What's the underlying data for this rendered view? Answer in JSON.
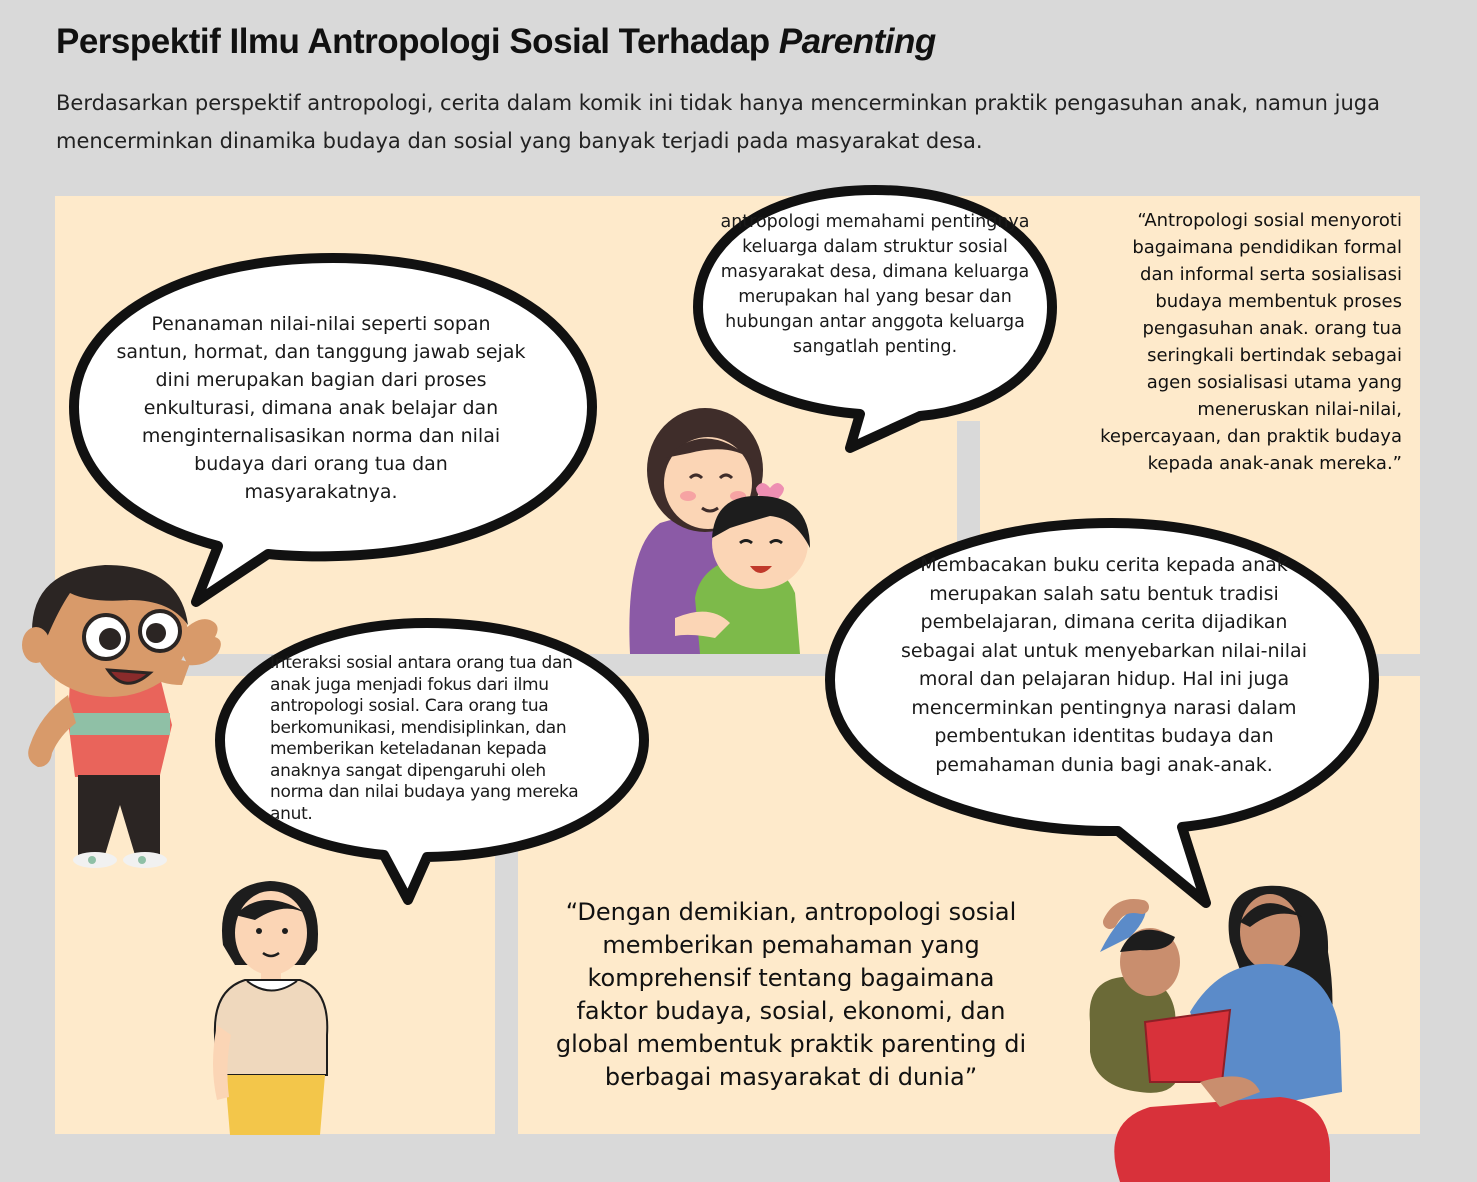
{
  "header": {
    "title_main": "Perspektif Ilmu Antropologi Sosial Terhadap ",
    "title_italic": "Parenting",
    "subtitle": "Berdasarkan perspektif antropologi, cerita dalam komik ini tidak hanya mencerminkan praktik pengasuhan anak, namun juga mencerminkan dinamika budaya dan sosial yang banyak terjadi pada masyarakat desa."
  },
  "bubbles": {
    "enkulturasi": "Penanaman nilai-nilai seperti sopan santun, hormat, dan tanggung jawab sejak dini merupakan bagian dari proses enkulturasi, dimana anak belajar dan menginternalisasikan norma dan nilai budaya dari orang tua dan masyarakatnya.",
    "keluarga": "antropologi memahami pentingnya keluarga dalam struktur sosial masyarakat desa, dimana keluarga merupakan hal yang besar dan hubungan antar anggota keluarga sangatlah penting.",
    "interaksi": "Interaksi sosial antara orang tua dan anak juga menjadi fokus dari ilmu antropologi sosial. Cara orang tua berkomunikasi, mendisiplinkan, dan memberikan keteladanan kepada anaknya sangat dipengaruhi oleh norma dan nilai budaya yang mereka anut.",
    "membacakan": "Membacakan buku cerita kepada anak merupakan salah satu bentuk tradisi pembelajaran, dimana cerita dijadikan sebagai alat untuk menyebarkan nilai-nilai moral dan pelajaran hidup. Hal ini juga mencerminkan pentingnya narasi dalam pembentukan identitas budaya dan pemahaman dunia bagi anak-anak."
  },
  "quotes": {
    "sosialisasi": "“Antropologi sosial menyoroti bagaimana pendidikan formal dan informal serta sosialisasi budaya membentuk proses pengasuhan anak. orang tua seringkali bertindak sebagai agen sosialisasi utama yang meneruskan nilai-nilai, kepercayaan, dan praktik budaya kepada anak-anak mereka.”",
    "kesimpulan": "“Dengan demikian, antropologi sosial memberikan pemahaman yang komprehensif tentang bagaimana faktor budaya, sosial, ekonomi, dan global membentuk praktik parenting di berbagai masyarakat di dunia”"
  },
  "colors": {
    "background": "#d9d9d9",
    "panel": "#feeacb",
    "bubble_fill": "#ffffff",
    "bubble_outline": "#111111"
  }
}
